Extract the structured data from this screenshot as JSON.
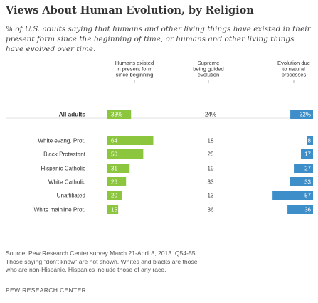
{
  "title": "Views About Human Evolution, by Religion",
  "subtitle": "% of U.S. adults saying that humans and other living things have existed in their present form since the beginning of time, or humans and other living things have evolved over time.",
  "chart_data": {
    "type": "bar",
    "stacked": true,
    "series": [
      {
        "name": "Humans existed in present form since beginning",
        "color": "#8cc63f",
        "values": [
          33,
          64,
          50,
          31,
          26,
          20,
          15
        ],
        "labels": [
          "33%",
          "64",
          "50",
          "31",
          "26",
          "20",
          "15"
        ]
      },
      {
        "name": "Supreme being guided evolution",
        "values": [
          24,
          18,
          25,
          19,
          33,
          13,
          36
        ],
        "labels": [
          "24%",
          "18",
          "25",
          "19",
          "33",
          "13",
          "36"
        ]
      },
      {
        "name": "Evolution due to natural processes",
        "color": "#3d8ec9",
        "values": [
          32,
          8,
          17,
          27,
          33,
          57,
          36
        ],
        "labels": [
          "32%",
          "8",
          "17",
          "27",
          "33",
          "57",
          "36"
        ]
      }
    ],
    "categories": [
      "All adults",
      "White evang. Prot.",
      "Black Protestant",
      "Hispanic Catholic",
      "White Catholic",
      "Unaffiliated",
      "White mainline Prot."
    ],
    "legend_position": "top",
    "headers": [
      [
        "Humans existed",
        "in present form",
        "since beginning"
      ],
      [
        "Supreme",
        "being guided",
        "evolution"
      ],
      [
        "Evolution due",
        "to natural",
        "processes"
      ]
    ],
    "gridlines": false
  },
  "notes": [
    "Source: Pew Research Center survey March 21-April 8, 2013. Q54-55.",
    "Those saying \"don't know\" are not shown. Whites and blacks are those",
    "who are non-Hispanic. Hispanics include those of any race."
  ],
  "org": "PEW RESEARCH CENTER"
}
